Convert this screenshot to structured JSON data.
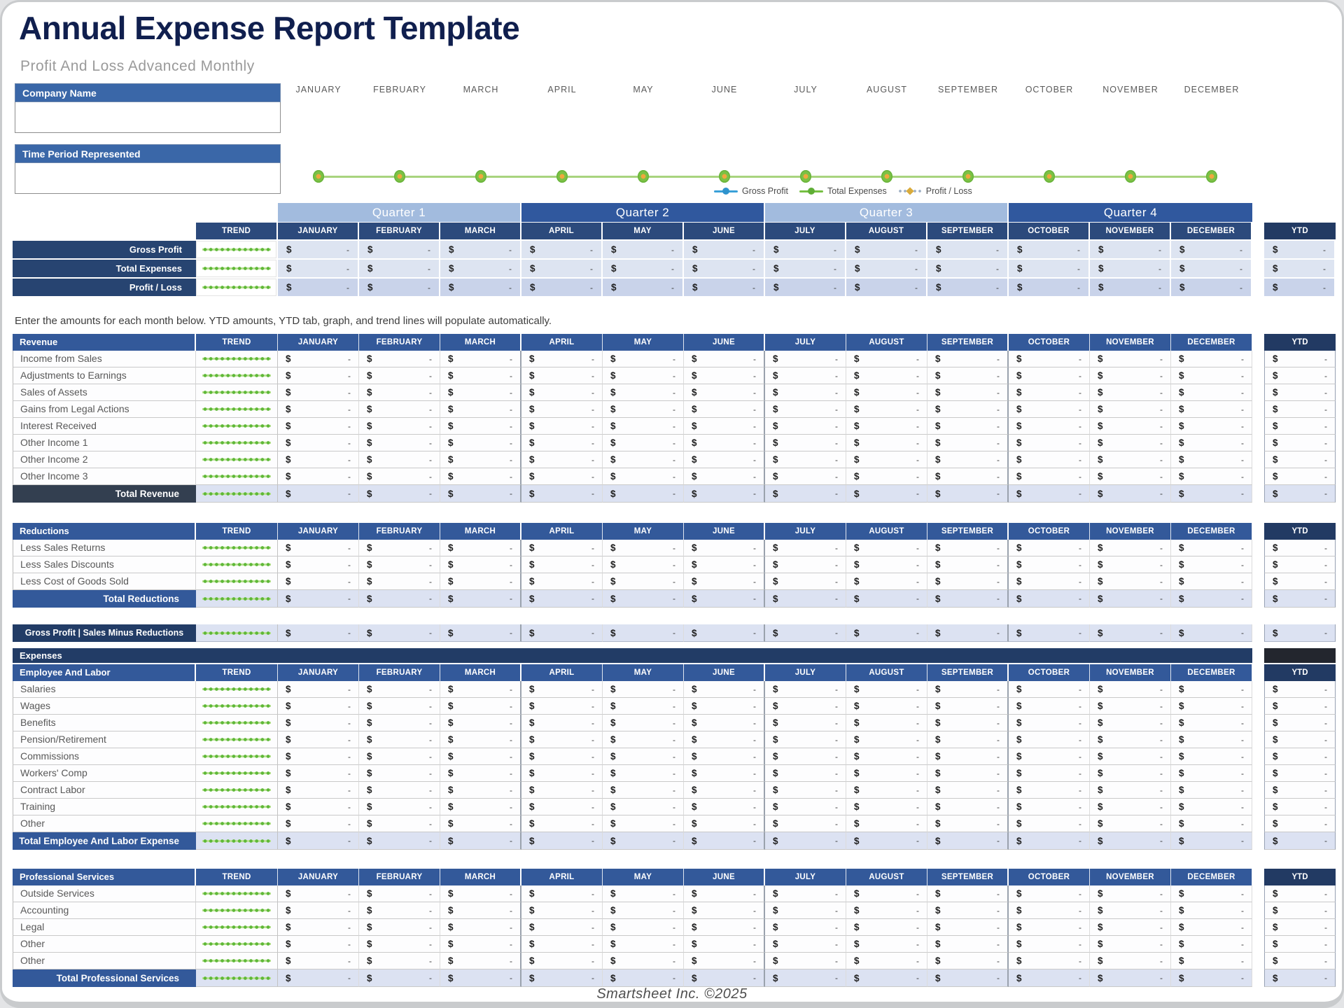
{
  "page": {
    "title": "Annual Expense Report Template",
    "subtitle": "Profit And Loss Advanced Monthly",
    "instruction": "Enter the amounts for each month below. YTD amounts, YTD tab, graph, and trend lines will populate automatically.",
    "footer": "Smartsheet Inc. ©2025"
  },
  "inputs": {
    "company_name": {
      "label": "Company Name",
      "value": ""
    },
    "time_period": {
      "label": "Time Period Represented",
      "value": ""
    }
  },
  "months": [
    "JANUARY",
    "FEBRUARY",
    "MARCH",
    "APRIL",
    "MAY",
    "JUNE",
    "JULY",
    "AUGUST",
    "SEPTEMBER",
    "OCTOBER",
    "NOVEMBER",
    "DECEMBER"
  ],
  "quarters": [
    "Quarter 1",
    "Quarter 2",
    "Quarter 3",
    "Quarter 4"
  ],
  "columns": {
    "trend": "TREND",
    "ytd": "YTD"
  },
  "cell": {
    "currency": "$",
    "empty": "-"
  },
  "chart_data": {
    "type": "line",
    "title": "",
    "x": [
      "JANUARY",
      "FEBRUARY",
      "MARCH",
      "APRIL",
      "MAY",
      "JUNE",
      "JULY",
      "AUGUST",
      "SEPTEMBER",
      "OCTOBER",
      "NOVEMBER",
      "DECEMBER"
    ],
    "series": [
      {
        "name": "Gross Profit",
        "color": "#3aa0d8",
        "values": [
          0,
          0,
          0,
          0,
          0,
          0,
          0,
          0,
          0,
          0,
          0,
          0
        ]
      },
      {
        "name": "Total Expenses",
        "color": "#76c043",
        "values": [
          0,
          0,
          0,
          0,
          0,
          0,
          0,
          0,
          0,
          0,
          0,
          0
        ]
      },
      {
        "name": "Profit / Loss",
        "color": "#d9ab3c",
        "values": [
          0,
          0,
          0,
          0,
          0,
          0,
          0,
          0,
          0,
          0,
          0,
          0
        ]
      }
    ],
    "legend_position": "bottom",
    "note": "Blank template — all series flat at zero, markers overlap on one line"
  },
  "summary": {
    "rows": [
      "Gross Profit",
      "Total Expenses",
      "Profit / Loss"
    ]
  },
  "sections": [
    {
      "id": "revenue",
      "title": "Revenue",
      "rows": [
        "Income from Sales",
        "Adjustments to Earnings",
        "Sales of Assets",
        "Gains from Legal Actions",
        "Interest Received",
        "Other Income 1",
        "Other Income 2",
        "Other Income 3"
      ],
      "total_label": "Total Revenue",
      "total_style": "charcoal"
    },
    {
      "id": "reductions",
      "title": "Reductions",
      "rows": [
        "Less Sales Returns",
        "Less Sales Discounts",
        "Less Cost of Goods Sold"
      ],
      "total_label": "Total Reductions",
      "total_style": "blue"
    },
    {
      "id": "employee",
      "title": "Employee And Labor",
      "rows": [
        "Salaries",
        "Wages",
        "Benefits",
        "Pension/Retirement",
        "Commissions",
        "Workers' Comp",
        "Contract Labor",
        "Training",
        "Other"
      ],
      "total_label": "Total Employee And Labor Expense",
      "total_style": "blue"
    },
    {
      "id": "professional",
      "title": "Professional Services",
      "rows": [
        "Outside Services",
        "Accounting",
        "Legal",
        "Other",
        "Other"
      ],
      "total_label": "Total Professional Services",
      "total_style": "blue"
    }
  ],
  "standalone": {
    "gross_profit_label": "Gross Profit  |  Sales Minus Reductions",
    "expenses_banner": "Expenses"
  },
  "colors": {
    "title_navy": "#101f4e",
    "header_bar_blue": "#3a67a8",
    "section_blue": "#33599a",
    "month_header_navy": "#2c4a7c",
    "ytd_header_navy": "#223a63",
    "label_navy": "#274471",
    "quarter_light": "#a2bbde",
    "quarter_dark": "#30589e",
    "charcoal_total": "#333f50",
    "lavender_cell": "#dce2f2",
    "summary_cell": "#dde4f1",
    "summary_cell_dark": "#c9d3ea",
    "trend_green": "#5fb838",
    "chart_line_green": "#a8d47e",
    "marker_gold": "#d9ab3c",
    "near_black_cell": "#23262e"
  }
}
